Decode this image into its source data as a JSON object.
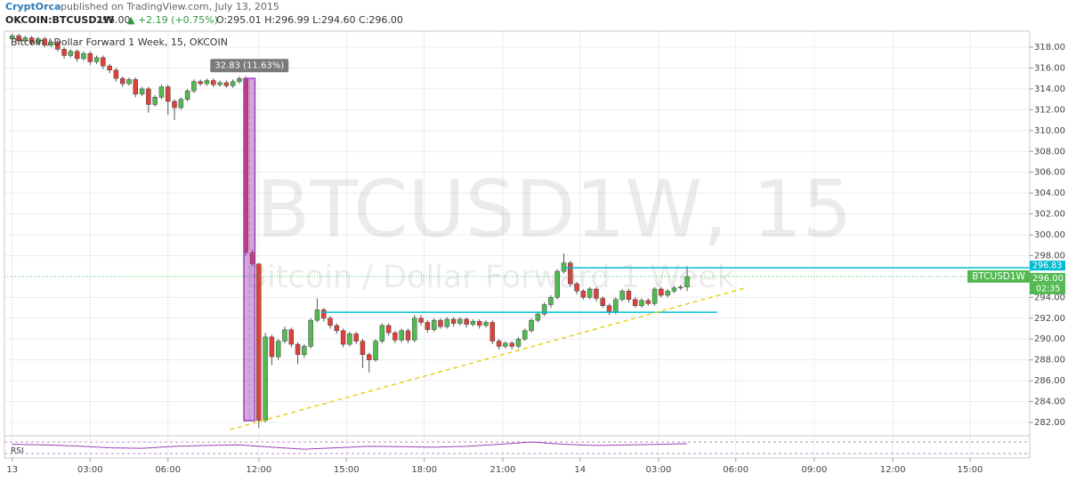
{
  "header": {
    "author": "CryptOrca",
    "published": "published on TradingView.com, July 13, 2015"
  },
  "symbol_line": {
    "symbol": "OKCOIN:BTCUSD1W",
    "last": "296.00",
    "change": "▲ +2.19 (+0.75%)",
    "ohlc": "O:295.01 H:296.99 L:294.60 C:296.00"
  },
  "chart_data": {
    "type": "candlestick",
    "legend_text": "Bitcoin / Dollar Forward 1 Week, 15, OKCOIN",
    "watermark": "BTCUSD1W, 15",
    "watermark_subtitle": "Bitcoin / Dollar Forward 1 Week",
    "up_color": "#53b953",
    "down_color": "#e0403a",
    "xlim": [
      -1.2,
      156.8
    ],
    "xticks": [
      {
        "value": 0,
        "label": "13"
      },
      {
        "value": 12,
        "label": "03:00"
      },
      {
        "value": 24,
        "label": "06:00"
      },
      {
        "value": 38,
        "label": "12:00"
      },
      {
        "value": 51.5,
        "label": "15:00"
      },
      {
        "value": 63.5,
        "label": "18:00"
      },
      {
        "value": 75.6,
        "label": "21:00"
      },
      {
        "value": 87.5,
        "label": "14"
      },
      {
        "value": 99.6,
        "label": "03:00"
      },
      {
        "value": 111.5,
        "label": "06:00"
      },
      {
        "value": 123.6,
        "label": "09:00"
      },
      {
        "value": 135.7,
        "label": "12:00"
      },
      {
        "value": 147.6,
        "label": "15:00"
      }
    ],
    "ylim": [
      280.72,
      319.54
    ],
    "yticks": [
      {
        "value": 282,
        "label": "282.00"
      },
      {
        "value": 284,
        "label": "284.00"
      },
      {
        "value": 286,
        "label": "286.00"
      },
      {
        "value": 288,
        "label": "288.00"
      },
      {
        "value": 290,
        "label": "290.00"
      },
      {
        "value": 292,
        "label": "292.00"
      },
      {
        "value": 294,
        "label": "294.00"
      },
      {
        "value": 298,
        "label": "298.00"
      },
      {
        "value": 300,
        "label": "300.00"
      },
      {
        "value": 302,
        "label": "302.00"
      },
      {
        "value": 304,
        "label": "304.00"
      },
      {
        "value": 306,
        "label": "306.00"
      },
      {
        "value": 308,
        "label": "308.00"
      },
      {
        "value": 310,
        "label": "310.00"
      },
      {
        "value": 312,
        "label": "312.00"
      },
      {
        "value": 314,
        "label": "314.00"
      },
      {
        "value": 316,
        "label": "316.00"
      },
      {
        "value": 318,
        "label": "318.00"
      }
    ],
    "grid": true,
    "open": [
      318.8,
      319.1,
      318.6,
      318.9,
      318.4,
      318.8,
      318.2,
      318.5,
      317.8,
      317.2,
      317.6,
      316.9,
      317.4,
      316.6,
      317.0,
      316.2,
      315.8,
      315.0,
      314.5,
      314.9,
      313.5,
      314.0,
      312.5,
      313.2,
      314.2,
      312.8,
      312.2,
      313.0,
      313.8,
      314.7,
      314.5,
      314.8,
      314.4,
      314.6,
      314.3,
      314.7,
      315.0,
      298.3,
      297.2,
      282.2,
      290.2,
      288.3,
      289.8,
      290.9,
      289.5,
      288.5,
      289.3,
      291.8,
      292.8,
      292.0,
      291.3,
      290.8,
      289.5,
      290.5,
      289.8,
      288.5,
      288.0,
      289.8,
      291.3,
      290.6,
      289.9,
      290.8,
      289.9,
      292.0,
      291.6,
      290.9,
      291.8,
      291.2,
      291.9,
      291.5,
      291.9,
      291.4,
      291.7,
      291.3,
      291.6,
      289.8,
      289.3,
      289.6,
      289.3,
      290.0,
      290.8,
      291.8,
      292.4,
      293.3,
      294.0,
      296.5,
      297.3,
      295.3,
      294.6,
      294.0,
      294.8,
      293.9,
      293.2,
      292.6,
      293.8,
      294.6,
      293.8,
      293.2,
      293.7,
      293.4,
      294.8,
      294.2,
      294.6,
      294.9,
      295.01
    ],
    "high": [
      319.3,
      319.3,
      319.1,
      319.1,
      319.0,
      319.0,
      318.7,
      318.7,
      318.0,
      317.8,
      317.8,
      317.6,
      317.6,
      317.2,
      317.2,
      316.4,
      316.0,
      315.2,
      315.1,
      315.1,
      314.2,
      314.2,
      313.4,
      314.4,
      314.4,
      313.0,
      313.2,
      314.0,
      314.9,
      314.9,
      315.0,
      315.0,
      314.8,
      314.8,
      314.9,
      315.2,
      315.2,
      298.6,
      297.3,
      290.6,
      290.4,
      290.0,
      291.2,
      291.1,
      289.7,
      289.5,
      292.0,
      293.9,
      293.0,
      292.2,
      291.5,
      291.0,
      290.7,
      290.7,
      290.0,
      288.7,
      290.0,
      291.5,
      291.5,
      290.8,
      291.0,
      291.0,
      292.3,
      292.3,
      291.8,
      292.0,
      292.0,
      292.1,
      292.1,
      292.1,
      292.1,
      291.9,
      291.9,
      291.8,
      291.8,
      290.0,
      289.8,
      289.8,
      290.2,
      291.0,
      292.0,
      292.6,
      293.5,
      294.2,
      296.7,
      298.2,
      297.5,
      295.5,
      294.8,
      295.0,
      295.0,
      294.1,
      293.4,
      294.0,
      294.8,
      294.8,
      294.0,
      293.9,
      293.9,
      295.0,
      295.0,
      294.8,
      295.1,
      295.2,
      296.99
    ],
    "low": [
      318.6,
      318.4,
      318.4,
      318.2,
      318.2,
      318.0,
      318.0,
      317.6,
      316.9,
      317.0,
      316.6,
      316.7,
      316.3,
      316.4,
      315.9,
      315.5,
      314.7,
      314.2,
      314.3,
      313.2,
      313.3,
      311.7,
      312.3,
      313.0,
      311.5,
      311.0,
      312.0,
      312.8,
      313.6,
      314.3,
      314.3,
      314.2,
      314.2,
      314.1,
      314.1,
      314.5,
      298.0,
      297.0,
      281.5,
      282.0,
      287.5,
      288.0,
      289.6,
      289.2,
      287.6,
      288.2,
      289.1,
      291.6,
      291.7,
      291.0,
      290.5,
      289.2,
      289.3,
      289.5,
      287.2,
      286.8,
      287.8,
      289.6,
      290.3,
      289.6,
      289.7,
      289.6,
      289.7,
      291.3,
      290.6,
      290.7,
      291.0,
      291.0,
      291.2,
      291.3,
      291.1,
      291.2,
      291.0,
      291.1,
      289.5,
      289.0,
      289.1,
      289.0,
      289.1,
      289.8,
      290.6,
      291.6,
      292.2,
      293.0,
      293.8,
      296.3,
      295.0,
      294.3,
      293.8,
      293.8,
      293.6,
      293.0,
      292.3,
      292.4,
      293.6,
      293.5,
      293.0,
      293.0,
      293.2,
      293.2,
      294.0,
      294.0,
      294.4,
      294.7,
      294.6
    ],
    "close": [
      319.1,
      318.6,
      318.9,
      318.4,
      318.8,
      318.2,
      318.5,
      317.8,
      317.2,
      317.6,
      316.9,
      317.4,
      316.6,
      317.0,
      316.2,
      315.8,
      315.0,
      314.5,
      314.9,
      313.5,
      314.0,
      312.5,
      313.2,
      314.2,
      312.8,
      312.2,
      313.0,
      313.8,
      314.7,
      314.5,
      314.8,
      314.4,
      314.6,
      314.3,
      314.7,
      315.0,
      298.3,
      297.2,
      282.2,
      290.2,
      288.3,
      289.8,
      290.9,
      289.5,
      288.5,
      289.3,
      291.8,
      292.8,
      292.0,
      291.3,
      290.8,
      289.5,
      290.5,
      289.8,
      288.5,
      288.0,
      289.8,
      291.3,
      290.6,
      289.9,
      290.8,
      289.9,
      292.0,
      291.6,
      290.9,
      291.8,
      291.2,
      291.9,
      291.5,
      291.9,
      291.4,
      291.7,
      291.3,
      291.6,
      289.8,
      289.3,
      289.6,
      289.3,
      290.0,
      290.8,
      291.8,
      292.4,
      293.3,
      294.0,
      296.5,
      297.3,
      295.3,
      294.6,
      294.0,
      294.8,
      293.9,
      293.2,
      292.6,
      293.8,
      294.6,
      293.8,
      293.2,
      293.7,
      293.4,
      294.8,
      294.2,
      294.6,
      294.9,
      295.0,
      296.0
    ],
    "last_price": {
      "value": 296,
      "label": "296.00"
    },
    "price_tag": "BTCUSD1W",
    "countdown": "02:35",
    "measure": {
      "x_from": 35.7,
      "x_to": 37.4,
      "from": 315.0,
      "to": 282.17,
      "label": "32.83 (11.63%)",
      "color": "#9c3fb7"
    },
    "hlines": [
      {
        "from": [
          85,
          296.83
        ],
        "to": [
          156.8,
          296.83
        ],
        "color": "#00bcd4"
      },
      {
        "from": [
          47.7,
          292.57
        ],
        "to": [
          108.6,
          292.57
        ],
        "color": "#00bcd4"
      }
    ],
    "trendline": {
      "from": [
        33.5,
        281.3
      ],
      "to": [
        113.3,
        294.96
      ],
      "color": "#e6d21a"
    },
    "rsi": {
      "label": "RSI",
      "color": "#9c3fb7",
      "ylim": [
        0,
        100
      ],
      "bands": [
        70,
        30
      ],
      "x": [
        0,
        5,
        10,
        15,
        20,
        25,
        30,
        35,
        40,
        45,
        50,
        55,
        60,
        65,
        70,
        75,
        80,
        85,
        90,
        95,
        100,
        104
      ],
      "values": [
        62,
        60,
        56,
        50,
        48,
        55,
        58,
        60,
        52,
        45,
        50,
        55,
        54,
        52,
        55,
        62,
        70,
        62,
        58,
        60,
        62,
        64
      ]
    }
  }
}
